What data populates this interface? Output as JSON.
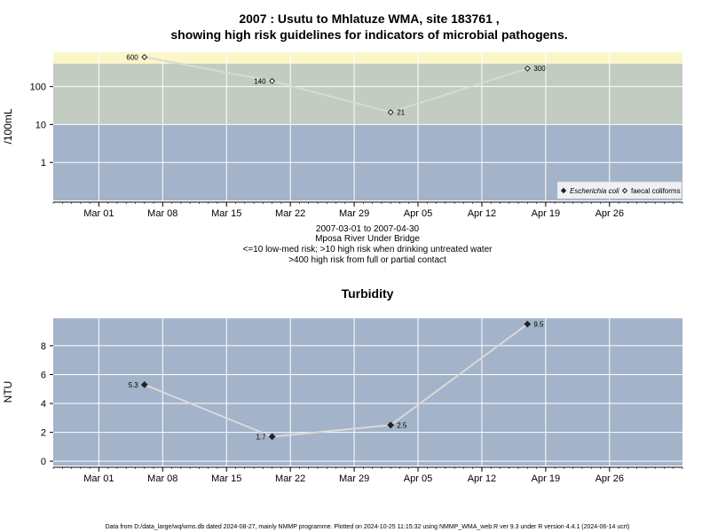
{
  "title_line1": "2007 : Usutu to Mhlatuze WMA, site 183761 ,",
  "title_line2": "showing high risk guidelines for indicators of microbial pathogens.",
  "subtitle": [
    "2007-03-01 to 2007-04-30",
    "Mposa River Under Bridge",
    "<=10 low-med risk; >10 high risk when drinking untreated water",
    ">400 high risk from full or partial contact"
  ],
  "footer": "Data from D:/data_large/wq/wms.db dated 2024-08-27, mainly NMMP programme. Plotted on 2024-10-25 11:15:32 using NMMP_WMA_web.R ver 9.3 under R version 4.4.1 (2024-06-14 ucrt)",
  "colors": {
    "panel_bg": "#a3b3c9",
    "zone_high": "#c3ccc0",
    "zone_contact": "#fbf6c8",
    "line": "#d9d9d9",
    "grid": "#ffffff"
  },
  "chart_data": [
    {
      "type": "line",
      "ylabel": "/100mL",
      "yscale": "log",
      "ylim": [
        0.1,
        800
      ],
      "xlim": [
        "2007-02-24",
        "2007-05-04"
      ],
      "x_ticks": [
        "Mar 01",
        "Mar 08",
        "Mar 15",
        "Mar 22",
        "Mar 29",
        "Apr 05",
        "Apr 12",
        "Apr 19",
        "Apr 26"
      ],
      "x_tick_dates": [
        "2007-03-01",
        "2007-03-08",
        "2007-03-15",
        "2007-03-22",
        "2007-03-29",
        "2007-04-05",
        "2007-04-12",
        "2007-04-19",
        "2007-04-26"
      ],
      "y_ticks": [
        1,
        10,
        100
      ],
      "y_tick_labels": [
        "1",
        "10",
        "100"
      ],
      "guidelines": [
        10,
        400
      ],
      "grid": true,
      "legend_position": "bottom-right",
      "legend": [
        {
          "label": "Escherichia coli",
          "marker": "filled-diamond",
          "italic": true
        },
        {
          "label": "faecal coliforms",
          "marker": "open-diamond",
          "italic": false
        }
      ],
      "series": [
        {
          "name": "faecal coliforms",
          "marker": "open-diamond",
          "x": [
            "2007-03-06",
            "2007-03-20",
            "2007-04-02",
            "2007-04-17"
          ],
          "y": [
            600,
            140,
            21,
            300
          ],
          "labels": [
            "600",
            "140",
            "21",
            "300"
          ]
        }
      ]
    },
    {
      "type": "line",
      "title": "Turbidity",
      "ylabel": "NTU",
      "ylim": [
        -0.3,
        9.9
      ],
      "xlim": [
        "2007-02-24",
        "2007-05-04"
      ],
      "x_ticks": [
        "Mar 01",
        "Mar 08",
        "Mar 15",
        "Mar 22",
        "Mar 29",
        "Apr 05",
        "Apr 12",
        "Apr 19",
        "Apr 26"
      ],
      "x_tick_dates": [
        "2007-03-01",
        "2007-03-08",
        "2007-03-15",
        "2007-03-22",
        "2007-03-29",
        "2007-04-05",
        "2007-04-12",
        "2007-04-19",
        "2007-04-26"
      ],
      "y_ticks": [
        0,
        2,
        4,
        6,
        8
      ],
      "y_tick_labels": [
        "0",
        "2",
        "4",
        "6",
        "8"
      ],
      "grid": true,
      "series": [
        {
          "marker": "filled-diamond",
          "x": [
            "2007-03-06",
            "2007-03-20",
            "2007-04-02",
            "2007-04-17"
          ],
          "y": [
            5.3,
            1.7,
            2.5,
            9.5
          ],
          "labels": [
            "5.3",
            "1.7",
            "2.5",
            "9.5"
          ]
        }
      ]
    }
  ]
}
